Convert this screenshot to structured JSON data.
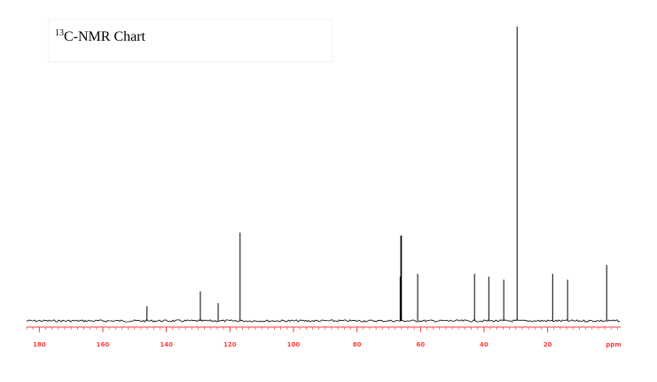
{
  "chart_data": {
    "type": "spectrum",
    "title_sup": "13",
    "title": "C-NMR Chart",
    "xlabel": "ppm",
    "x": [
      146.1,
      129.3,
      123.7,
      116.8,
      66.4,
      66.2,
      66.0,
      60.9,
      43.0,
      38.5,
      33.8,
      29.6,
      18.4,
      13.7,
      1.4
    ],
    "values": [
      5,
      10,
      6,
      30,
      15,
      29,
      29,
      16,
      16,
      15,
      14,
      100,
      16,
      14,
      19
    ],
    "color": "#000000",
    "axis_color": "#ff3b3b",
    "xlim": [
      184,
      -3
    ],
    "xticks": [
      180,
      160,
      140,
      120,
      100,
      80,
      60,
      40,
      20
    ],
    "ylim": [
      0,
      100
    ]
  }
}
